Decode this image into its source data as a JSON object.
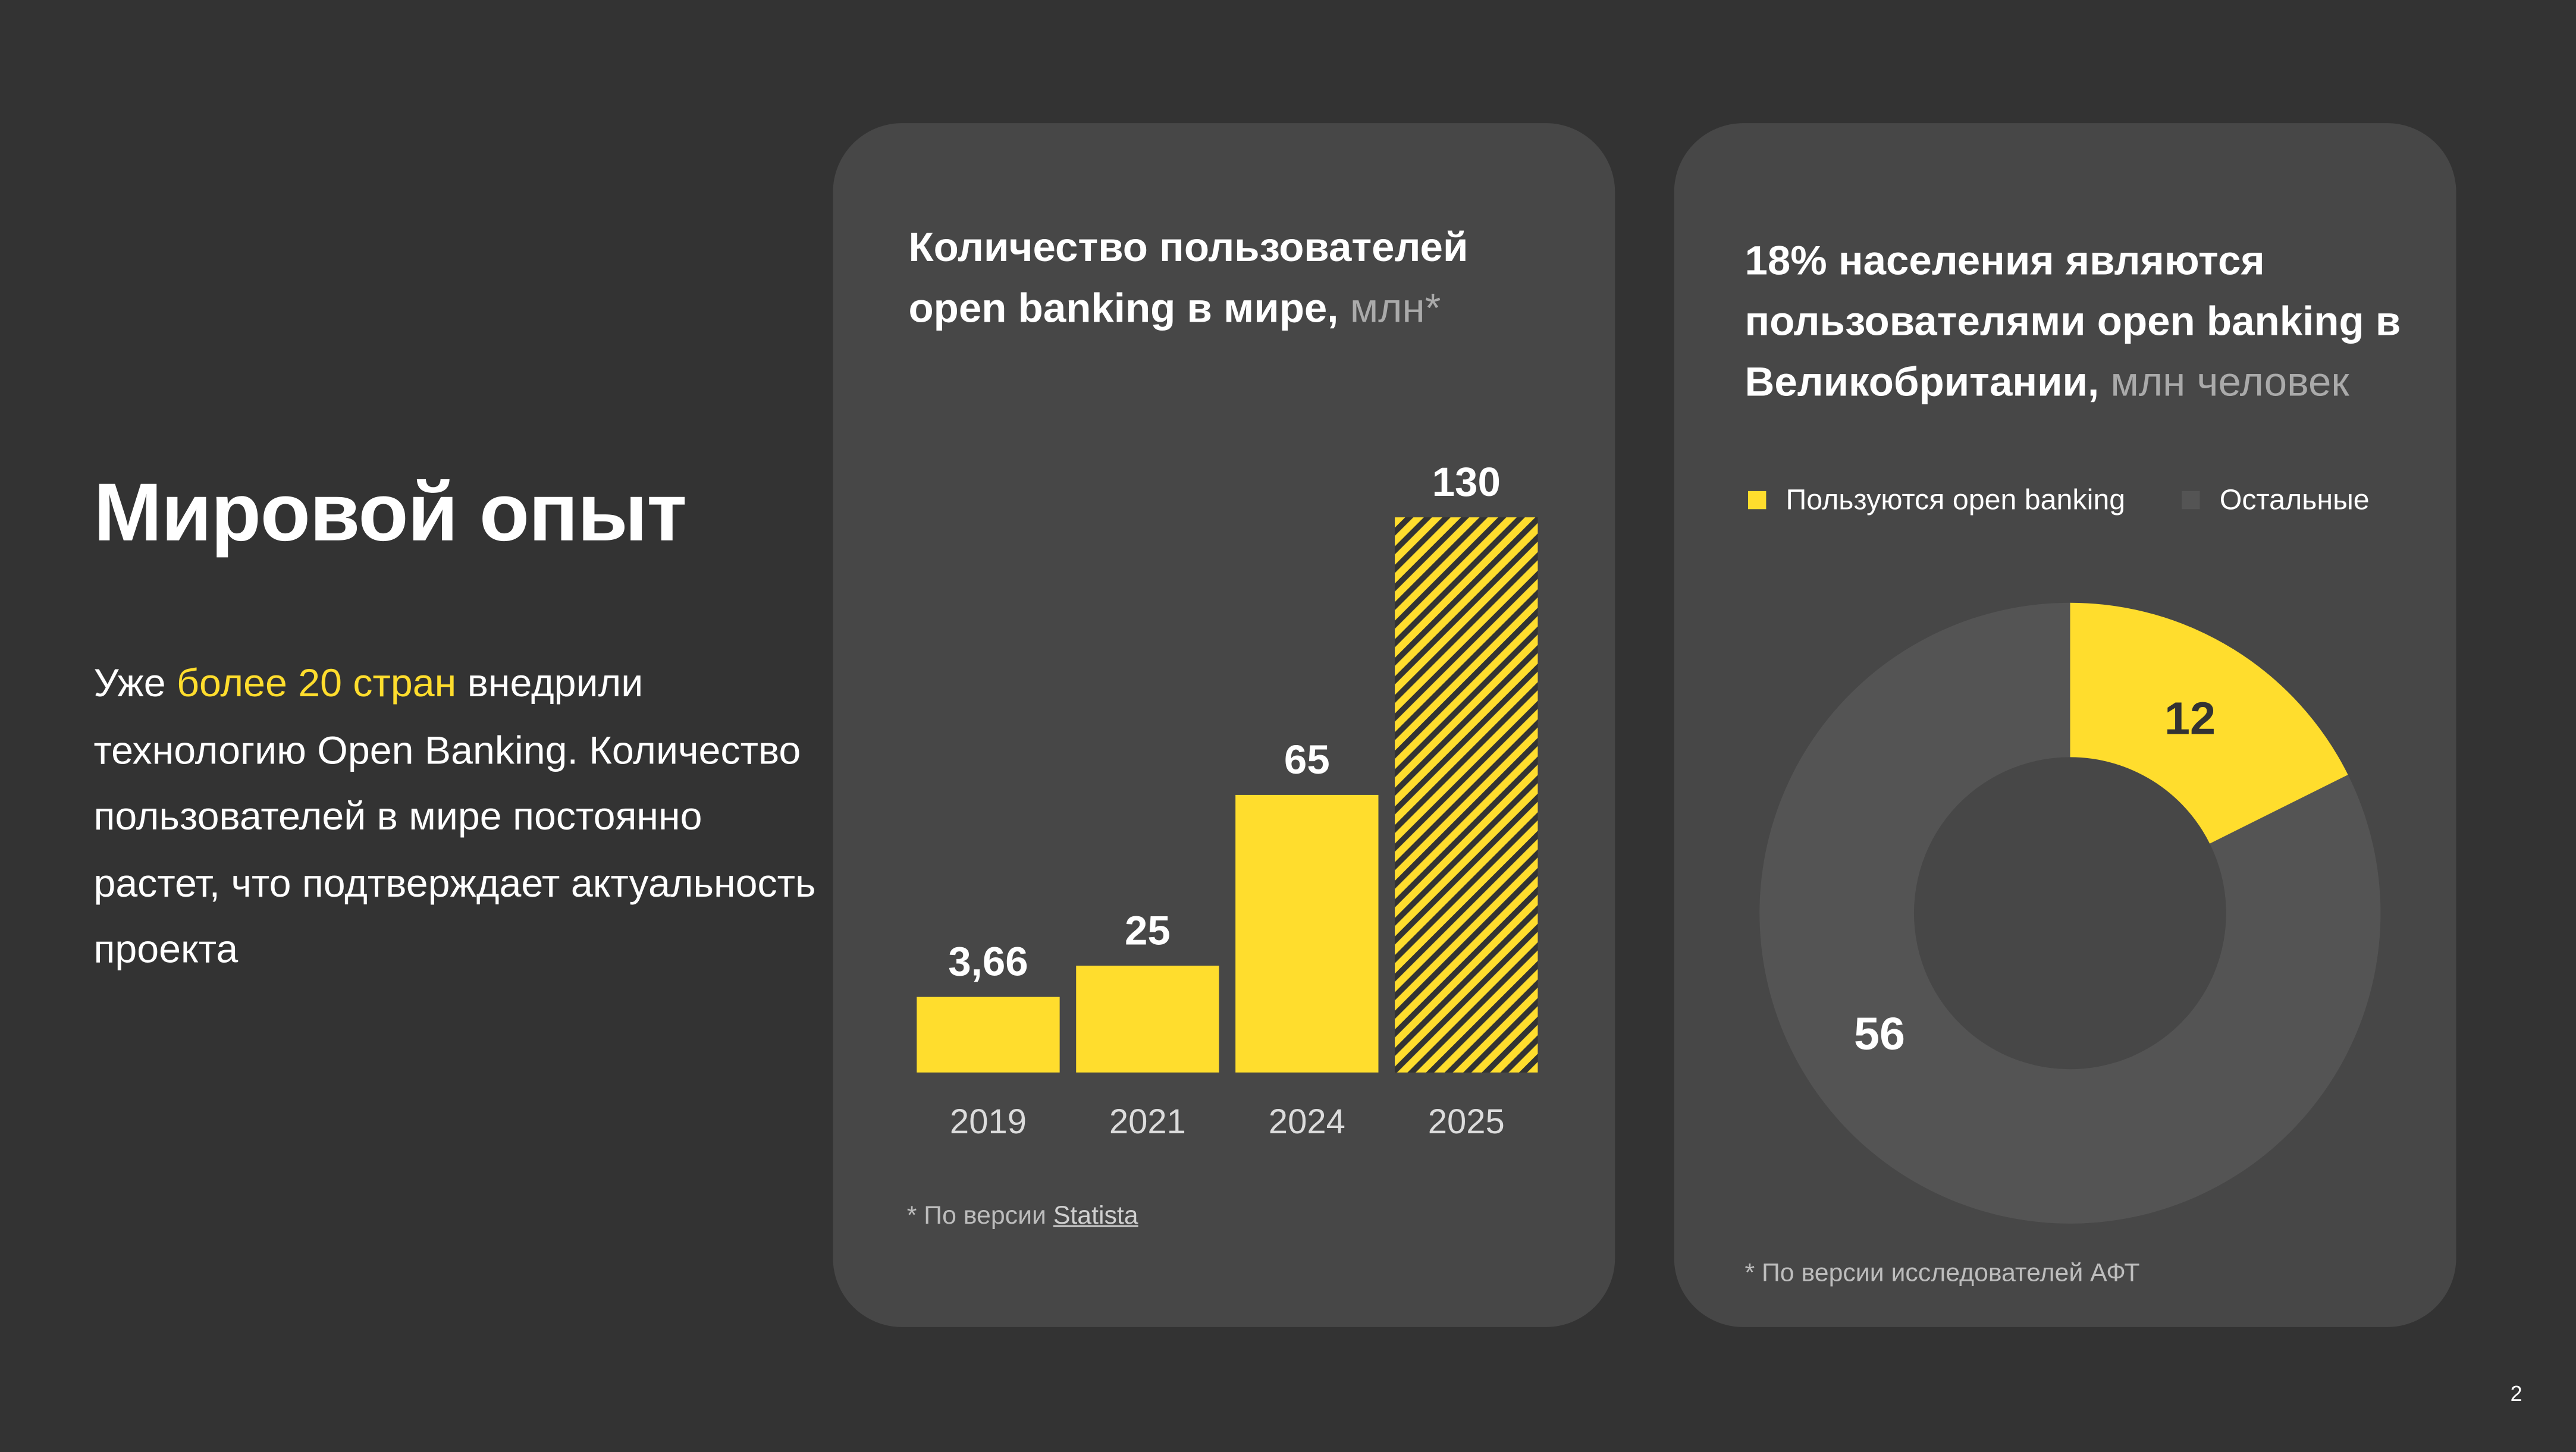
{
  "colors": {
    "background": "#333333",
    "card": "#474747",
    "accent": "#FFDD2D",
    "others": "#545454"
  },
  "left": {
    "title": "Мировой опыт",
    "intro_pre": "Уже ",
    "intro_highlight": "более 20 стран",
    "intro_post": " внедрили технологию Open Banking. Количество пользователей в мире постоянно растет, что подтверждает актуальность проекта"
  },
  "card1": {
    "title_bold": "Количество пользователей open banking в мире,",
    "title_unit": " млн*",
    "footnote_pre": "* По версии ",
    "footnote_link": "Statista"
  },
  "card2": {
    "title_bold": "18% населения являются пользователями open banking в Великобритании,",
    "title_unit": " млн человек",
    "footnote": "* По версии исследователей АФТ"
  },
  "chart_data": [
    {
      "type": "bar",
      "categories": [
        "2019",
        "2021",
        "2024",
        "2025"
      ],
      "values": [
        3.66,
        25,
        65,
        130
      ],
      "value_labels": [
        "3,66",
        "25",
        "65",
        "130"
      ],
      "forecast": [
        false,
        false,
        false,
        true
      ],
      "unit": "млн"
    },
    {
      "type": "pie",
      "variant": "donut",
      "labels": [
        "Пользуются open banking",
        "Остальные"
      ],
      "values": [
        12,
        56
      ],
      "value_labels": [
        "12",
        "56"
      ],
      "colors": [
        "#FFDD2D",
        "#545454"
      ],
      "legend": "top"
    }
  ],
  "page_number": "2"
}
